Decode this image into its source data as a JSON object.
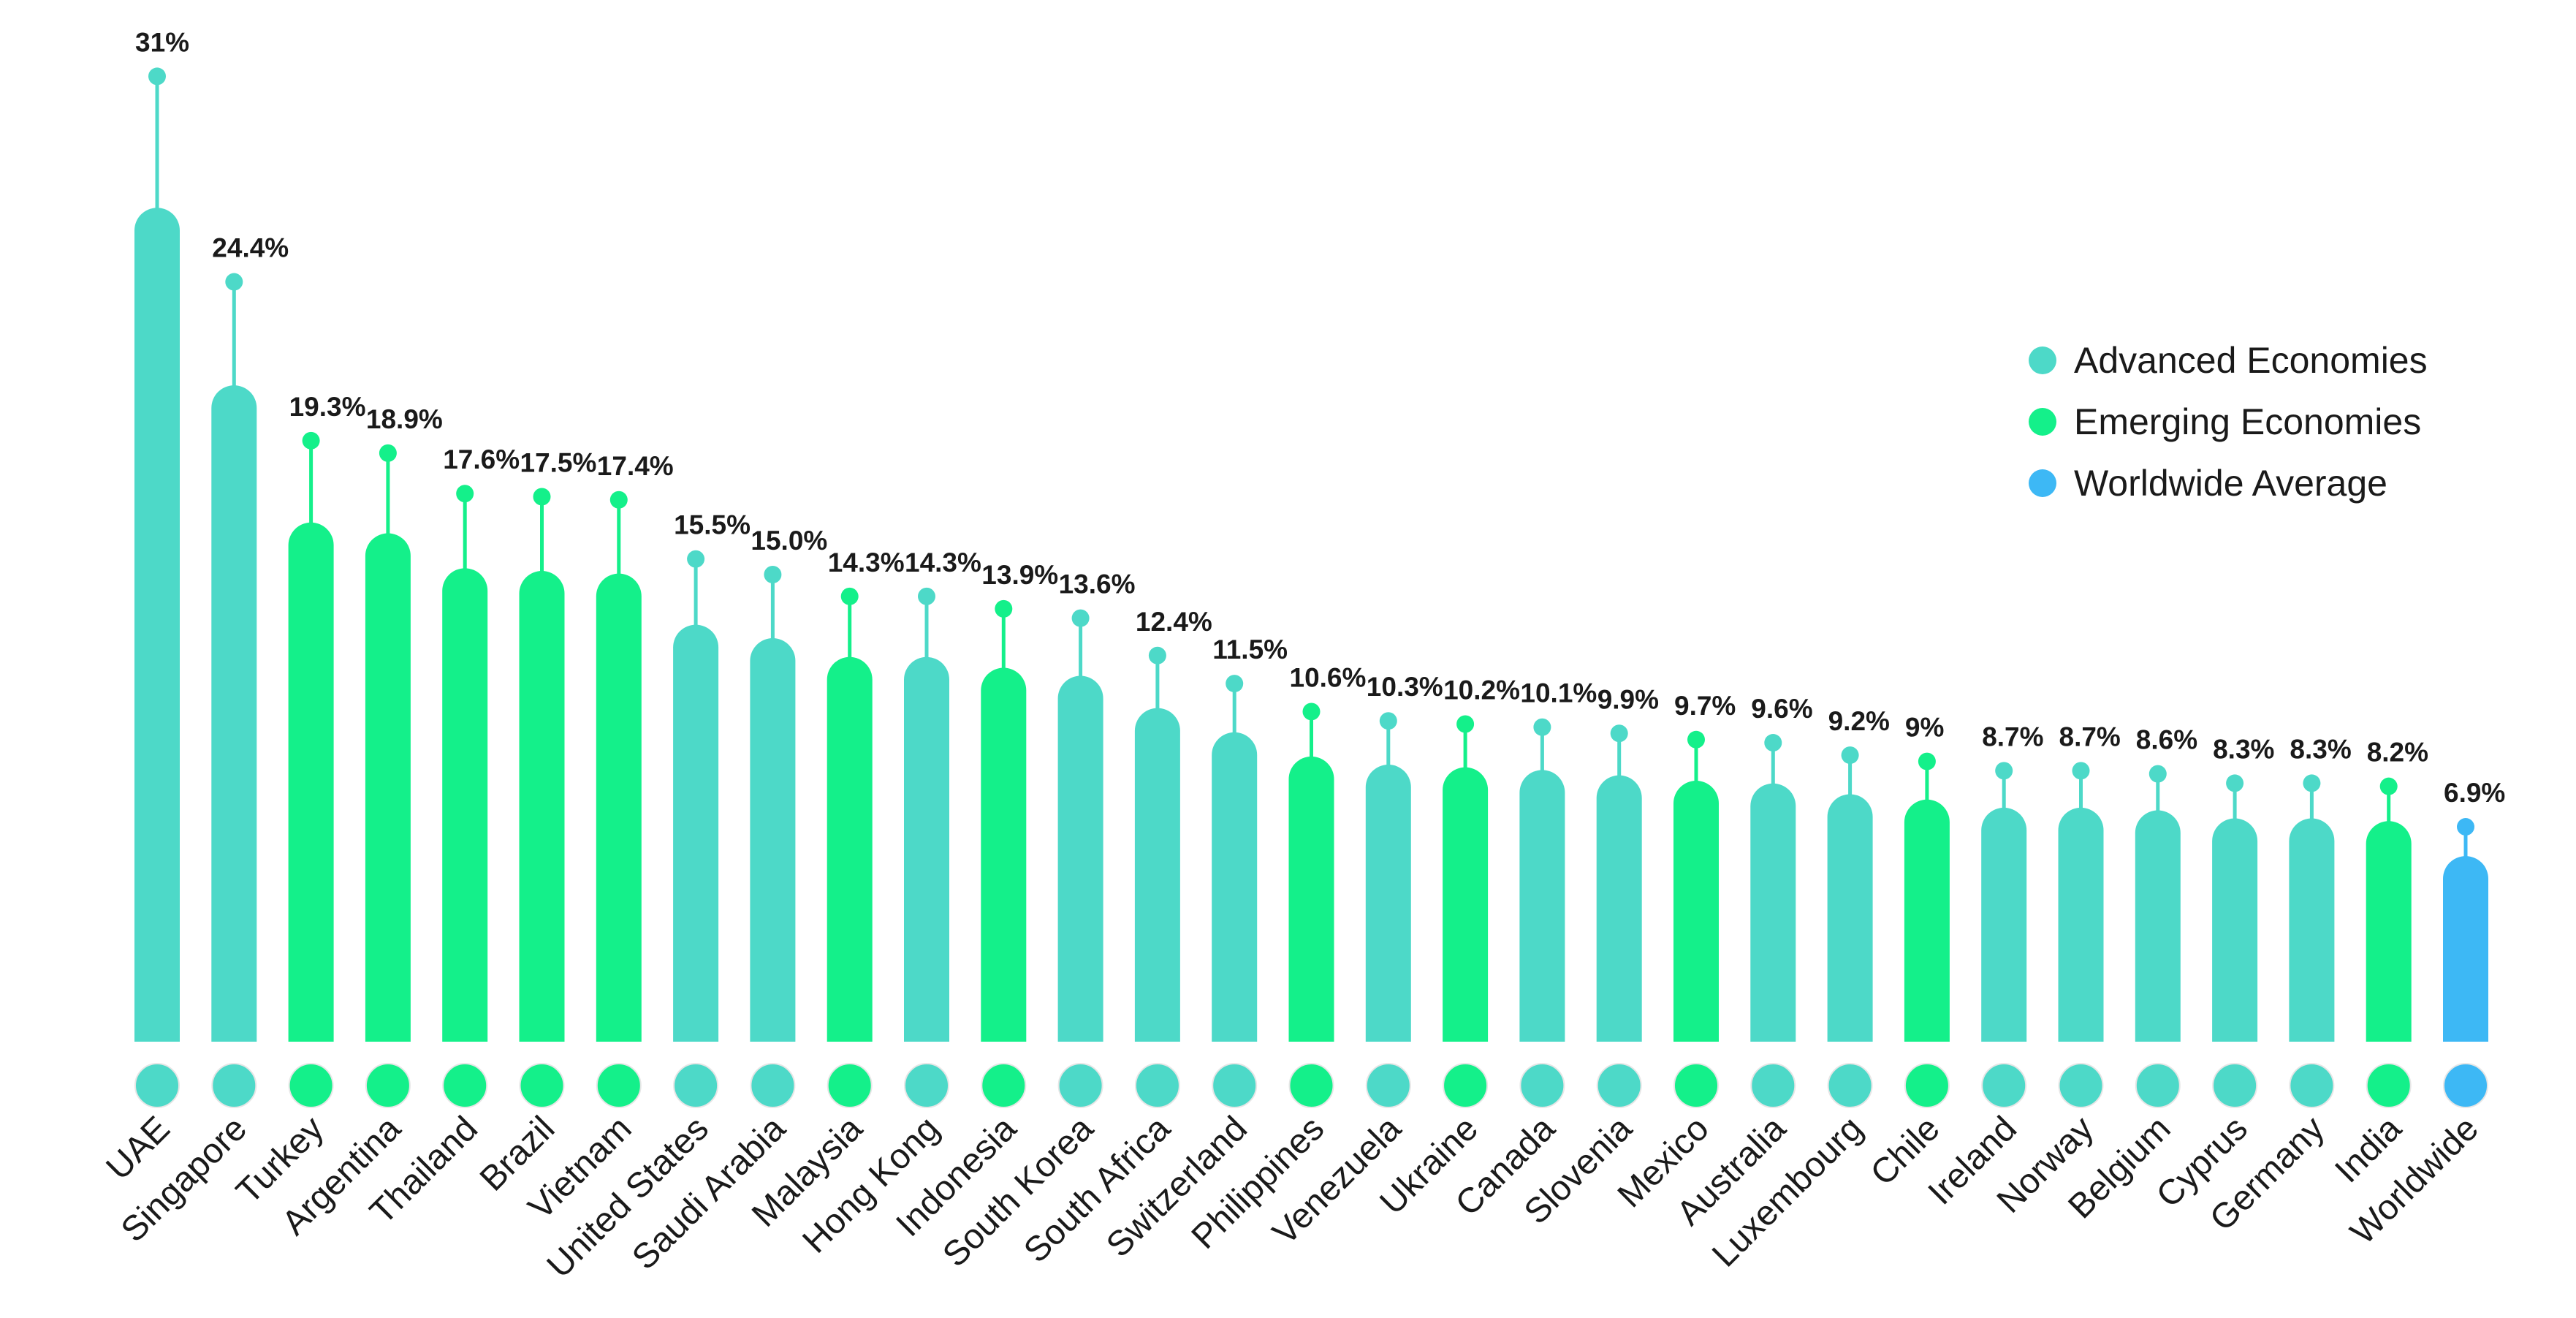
{
  "chart_data": {
    "type": "bar",
    "categories": [
      "UAE",
      "Singapore",
      "Turkey",
      "Argentina",
      "Thailand",
      "Brazil",
      "Vietnam",
      "United States",
      "Saudi Arabia",
      "Malaysia",
      "Hong Kong",
      "Indonesia",
      "South Korea",
      "South Africa",
      "Switzerland",
      "Philippines",
      "Venezuela",
      "Ukraine",
      "Canada",
      "Slovenia",
      "Mexico",
      "Australia",
      "Luxembourg",
      "Chile",
      "Ireland",
      "Norway",
      "Belgium",
      "Cyprus",
      "Germany",
      "India",
      "Worldwide"
    ],
    "values": [
      31,
      24.4,
      19.3,
      18.9,
      17.6,
      17.5,
      17.4,
      15.5,
      15.0,
      14.3,
      14.3,
      13.9,
      13.6,
      12.4,
      11.5,
      10.6,
      10.3,
      10.2,
      10.1,
      9.9,
      9.7,
      9.6,
      9.2,
      9,
      8.7,
      8.7,
      8.6,
      8.3,
      8.3,
      8.2,
      6.9
    ],
    "value_labels": [
      "31%",
      "24.4%",
      "19.3%",
      "18.9%",
      "17.6%",
      "17.5%",
      "17.4%",
      "15.5%",
      "15.0%",
      "14.3%",
      "14.3%",
      "13.9%",
      "13.6%",
      "12.4%",
      "11.5%",
      "10.6%",
      "10.3%",
      "10.2%",
      "10.1%",
      "9.9%",
      "9.7%",
      "9.6%",
      "9.2%",
      "9%",
      "8.7%",
      "8.7%",
      "8.6%",
      "8.3%",
      "8.3%",
      "8.2%",
      "6.9%"
    ],
    "groups": [
      "advanced",
      "advanced",
      "emerging",
      "emerging",
      "emerging",
      "emerging",
      "emerging",
      "advanced",
      "advanced",
      "emerging",
      "advanced",
      "emerging",
      "advanced",
      "advanced",
      "advanced",
      "emerging",
      "advanced",
      "emerging",
      "advanced",
      "advanced",
      "emerging",
      "advanced",
      "advanced",
      "emerging",
      "advanced",
      "advanced",
      "advanced",
      "advanced",
      "advanced",
      "emerging",
      "worldwide"
    ],
    "legend": {
      "position": "top-right",
      "items": [
        {
          "key": "advanced",
          "label": "Advanced Economies",
          "color": "#4dd9c8"
        },
        {
          "key": "emerging",
          "label": "Emerging Economies",
          "color": "#14f08a"
        },
        {
          "key": "worldwide",
          "label": "Worldwide Average",
          "color": "#3db8f5"
        }
      ]
    },
    "title": "",
    "xlabel": "",
    "ylabel": "",
    "grid": false
  }
}
